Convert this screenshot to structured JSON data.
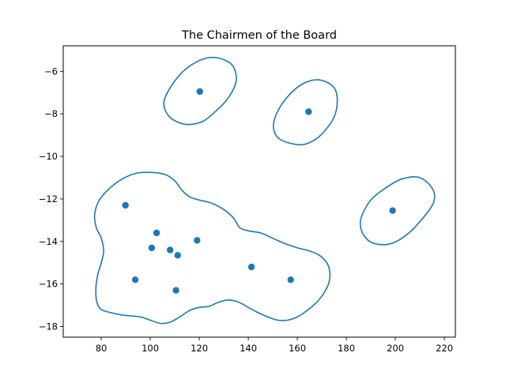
{
  "chart_data": {
    "type": "scatter",
    "title": "The Chairmen of the Board",
    "xlabel": "",
    "ylabel": "",
    "xlim": [
      64.5,
      224.5
    ],
    "ylim": [
      -18.5,
      -4.8
    ],
    "x_ticks": [
      80,
      100,
      120,
      140,
      160,
      180,
      200,
      220
    ],
    "y_ticks": [
      -18,
      -16,
      -14,
      -12,
      -10,
      -8,
      -6
    ],
    "x_tick_labels": [
      "80",
      "100",
      "120",
      "140",
      "160",
      "180",
      "200",
      "220"
    ],
    "y_tick_labels": [
      "−18",
      "−16",
      "−14",
      "−12",
      "−10",
      "−8",
      "−6"
    ],
    "grid": false,
    "color": "#1f77b4",
    "points": [
      {
        "x": 120.2,
        "y": -6.95
      },
      {
        "x": 164.6,
        "y": -7.9
      },
      {
        "x": 198.9,
        "y": -12.55
      },
      {
        "x": 89.9,
        "y": -12.3
      },
      {
        "x": 102.6,
        "y": -13.6
      },
      {
        "x": 119.1,
        "y": -13.95
      },
      {
        "x": 100.6,
        "y": -14.3
      },
      {
        "x": 108.1,
        "y": -14.4
      },
      {
        "x": 111.2,
        "y": -14.65
      },
      {
        "x": 141.3,
        "y": -15.2
      },
      {
        "x": 93.9,
        "y": -15.8
      },
      {
        "x": 157.3,
        "y": -15.8
      },
      {
        "x": 110.5,
        "y": -16.3
      }
    ],
    "contours": [
      [
        [
          116.0,
          -8.5
        ],
        [
          121.5,
          -8.35
        ],
        [
          126.5,
          -7.9
        ],
        [
          131.5,
          -7.3
        ],
        [
          135.0,
          -6.5
        ],
        [
          134.0,
          -5.8
        ],
        [
          130.0,
          -5.45
        ],
        [
          124.5,
          -5.35
        ],
        [
          119.0,
          -5.55
        ],
        [
          113.0,
          -6.05
        ],
        [
          108.0,
          -6.8
        ],
        [
          105.5,
          -7.5
        ],
        [
          107.5,
          -8.1
        ],
        [
          111.5,
          -8.4
        ],
        [
          116.0,
          -8.5
        ]
      ],
      [
        [
          160.0,
          -9.45
        ],
        [
          165.0,
          -9.35
        ],
        [
          170.0,
          -8.95
        ],
        [
          175.0,
          -8.15
        ],
        [
          176.3,
          -7.3
        ],
        [
          174.5,
          -6.7
        ],
        [
          168.5,
          -6.4
        ],
        [
          162.0,
          -6.6
        ],
        [
          156.0,
          -7.2
        ],
        [
          151.5,
          -8.0
        ],
        [
          150.3,
          -8.7
        ],
        [
          153.0,
          -9.2
        ],
        [
          160.0,
          -9.45
        ]
      ],
      [
        [
          194.5,
          -14.15
        ],
        [
          199.5,
          -14.05
        ],
        [
          205.0,
          -13.65
        ],
        [
          210.5,
          -13.0
        ],
        [
          215.5,
          -12.2
        ],
        [
          215.3,
          -11.55
        ],
        [
          210.0,
          -11.0
        ],
        [
          203.0,
          -11.05
        ],
        [
          196.5,
          -11.45
        ],
        [
          190.0,
          -12.05
        ],
        [
          186.0,
          -12.9
        ],
        [
          186.2,
          -13.5
        ],
        [
          189.5,
          -14.0
        ],
        [
          194.5,
          -14.15
        ]
      ],
      [
        [
          100.0,
          -17.7
        ],
        [
          104.0,
          -17.85
        ],
        [
          108.0,
          -17.8
        ],
        [
          112.0,
          -17.55
        ],
        [
          116.0,
          -17.25
        ],
        [
          120.0,
          -17.1
        ],
        [
          124.0,
          -17.05
        ],
        [
          128.0,
          -16.85
        ],
        [
          132.0,
          -16.75
        ],
        [
          136.0,
          -16.85
        ],
        [
          140.0,
          -17.1
        ],
        [
          144.0,
          -17.35
        ],
        [
          148.0,
          -17.55
        ],
        [
          152.0,
          -17.7
        ],
        [
          156.0,
          -17.7
        ],
        [
          160.0,
          -17.55
        ],
        [
          164.0,
          -17.25
        ],
        [
          168.0,
          -16.85
        ],
        [
          171.0,
          -16.4
        ],
        [
          173.0,
          -15.9
        ],
        [
          173.2,
          -15.4
        ],
        [
          172.0,
          -15.0
        ],
        [
          169.0,
          -14.65
        ],
        [
          165.0,
          -14.45
        ],
        [
          160.0,
          -14.3
        ],
        [
          155.0,
          -14.1
        ],
        [
          150.0,
          -13.85
        ],
        [
          145.0,
          -13.6
        ],
        [
          140.0,
          -13.5
        ],
        [
          136.5,
          -13.35
        ],
        [
          134.0,
          -12.9
        ],
        [
          130.0,
          -12.5
        ],
        [
          125.0,
          -12.2
        ],
        [
          120.0,
          -12.05
        ],
        [
          116.0,
          -11.9
        ],
        [
          113.0,
          -11.6
        ],
        [
          110.0,
          -11.15
        ],
        [
          106.0,
          -10.85
        ],
        [
          100.0,
          -10.75
        ],
        [
          94.0,
          -10.8
        ],
        [
          88.0,
          -11.1
        ],
        [
          83.0,
          -11.55
        ],
        [
          79.0,
          -12.1
        ],
        [
          77.3,
          -12.75
        ],
        [
          78.0,
          -13.35
        ],
        [
          80.0,
          -13.85
        ],
        [
          81.0,
          -14.45
        ],
        [
          80.0,
          -15.0
        ],
        [
          78.5,
          -15.6
        ],
        [
          77.8,
          -16.25
        ],
        [
          78.2,
          -16.85
        ],
        [
          80.0,
          -17.2
        ],
        [
          84.0,
          -17.35
        ],
        [
          88.0,
          -17.45
        ],
        [
          92.0,
          -17.5
        ],
        [
          96.0,
          -17.55
        ],
        [
          100.0,
          -17.7
        ]
      ]
    ]
  }
}
